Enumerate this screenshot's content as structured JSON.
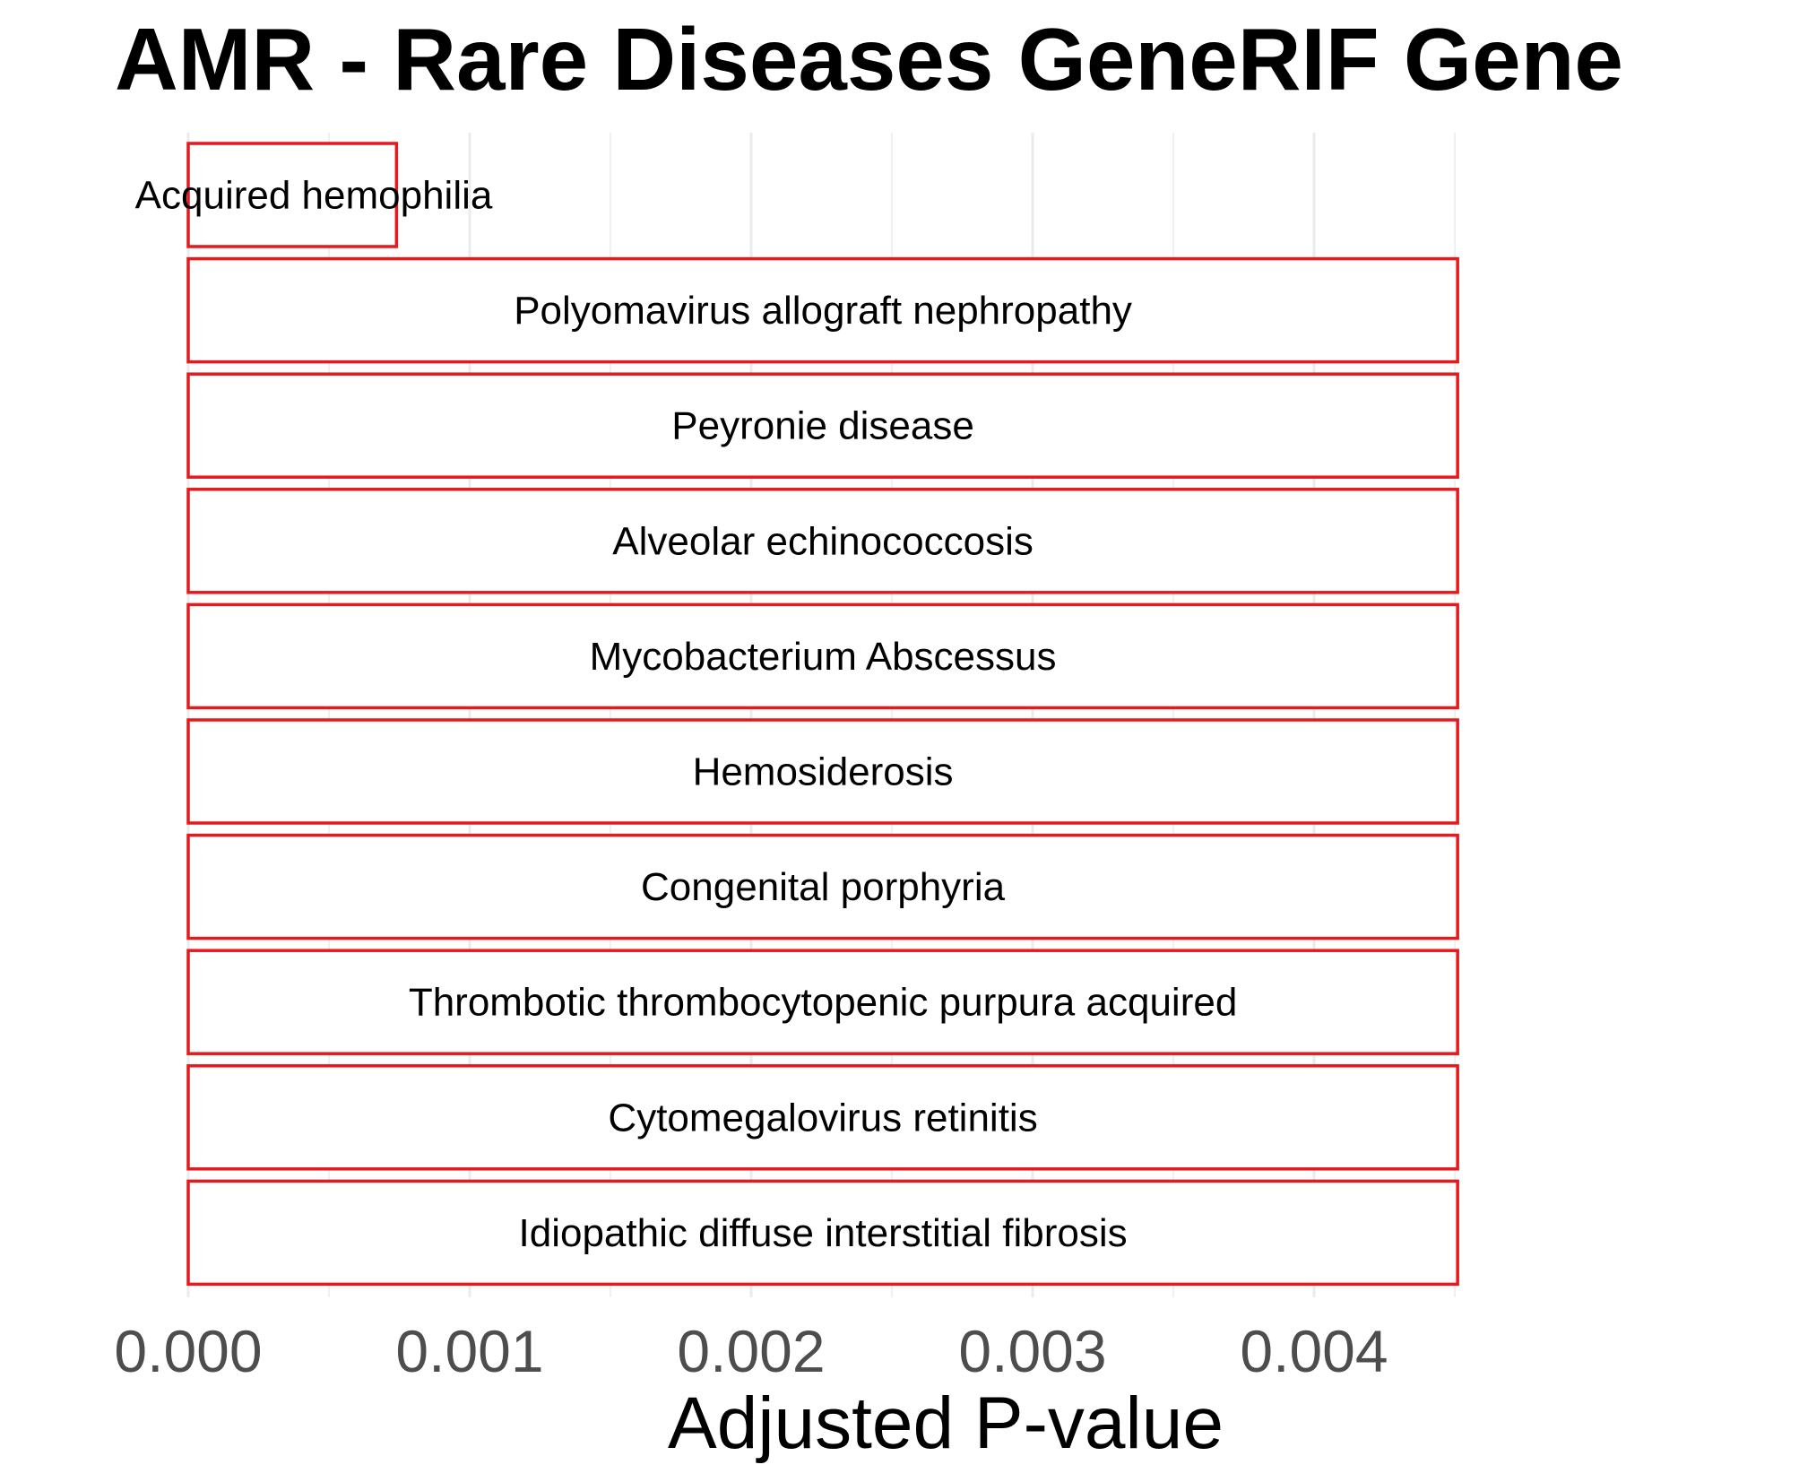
{
  "chart_data": {
    "type": "bar",
    "orientation": "horizontal",
    "title": "AMR  -  Rare Diseases GeneRIF Gene",
    "xlabel": "Adjusted P-value",
    "ylabel": "",
    "xlim": [
      0,
      0.0045
    ],
    "xticks": [
      0,
      0.001,
      0.002,
      0.003,
      0.004
    ],
    "xtick_labels": [
      "0.000",
      "0.001",
      "0.002",
      "0.003",
      "0.004"
    ],
    "categories": [
      "Acquired hemophilia",
      "Polyomavirus allograft nephropathy",
      "Peyronie disease",
      "Alveolar echinococcosis",
      "Mycobacterium Abscessus",
      "Hemosiderosis",
      "Congenital porphyria",
      "Thrombotic thrombocytopenic purpura acquired",
      "Cytomegalovirus retinitis",
      "Idiopathic diffuse interstitial fibrosis"
    ],
    "values": [
      0.00074,
      0.00451,
      0.00451,
      0.00451,
      0.00451,
      0.00451,
      0.00451,
      0.00451,
      0.00451,
      0.00451
    ],
    "bar_outline_color": "#e41a1c",
    "bar_fill_color": "#ffffff",
    "grid": true,
    "legend": "none"
  }
}
